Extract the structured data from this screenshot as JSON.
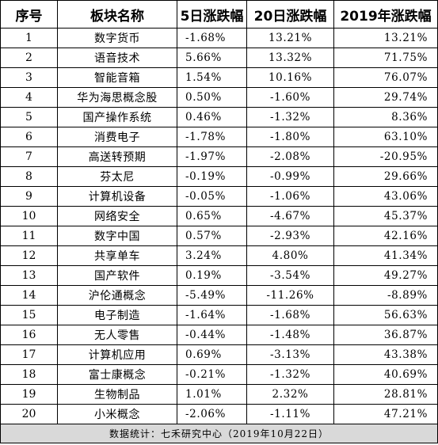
{
  "table": {
    "headers": [
      "序号",
      "板块名称",
      "5日涨跌幅",
      "20日涨跌幅",
      "2019年涨跌幅"
    ],
    "rows": [
      {
        "seq": "1",
        "name": "数字货币",
        "d5": "-1.68%",
        "d20": "13.21%",
        "y2019": "13.21%"
      },
      {
        "seq": "2",
        "name": "语音技术",
        "d5": "5.66%",
        "d20": "13.32%",
        "y2019": "71.75%"
      },
      {
        "seq": "3",
        "name": "智能音箱",
        "d5": "1.54%",
        "d20": "10.16%",
        "y2019": "76.07%"
      },
      {
        "seq": "4",
        "name": "华为海思概念股",
        "d5": "0.50%",
        "d20": "-1.60%",
        "y2019": "29.74%"
      },
      {
        "seq": "5",
        "name": "国产操作系统",
        "d5": "0.46%",
        "d20": "-1.32%",
        "y2019": "8.36%"
      },
      {
        "seq": "6",
        "name": "消费电子",
        "d5": "-1.78%",
        "d20": "-1.80%",
        "y2019": "63.10%"
      },
      {
        "seq": "7",
        "name": "高送转预期",
        "d5": "-1.97%",
        "d20": "-2.08%",
        "y2019": "-20.95%"
      },
      {
        "seq": "8",
        "name": "芬太尼",
        "d5": "-0.19%",
        "d20": "-0.99%",
        "y2019": "29.66%"
      },
      {
        "seq": "9",
        "name": "计算机设备",
        "d5": "-0.05%",
        "d20": "-1.06%",
        "y2019": "43.06%"
      },
      {
        "seq": "10",
        "name": "网络安全",
        "d5": "0.65%",
        "d20": "-4.67%",
        "y2019": "45.37%"
      },
      {
        "seq": "11",
        "name": "数字中国",
        "d5": "0.57%",
        "d20": "-2.93%",
        "y2019": "42.16%"
      },
      {
        "seq": "12",
        "name": "共享单车",
        "d5": "3.24%",
        "d20": "4.80%",
        "y2019": "41.34%"
      },
      {
        "seq": "13",
        "name": "国产软件",
        "d5": "0.19%",
        "d20": "-3.54%",
        "y2019": "49.27%"
      },
      {
        "seq": "14",
        "name": "沪伦通概念",
        "d5": "-5.49%",
        "d20": "-11.26%",
        "y2019": "-8.89%"
      },
      {
        "seq": "15",
        "name": "电子制造",
        "d5": "-1.64%",
        "d20": "-1.68%",
        "y2019": "56.63%"
      },
      {
        "seq": "16",
        "name": "无人零售",
        "d5": "-0.44%",
        "d20": "-1.48%",
        "y2019": "36.87%"
      },
      {
        "seq": "17",
        "name": "计算机应用",
        "d5": "0.69%",
        "d20": "-3.13%",
        "y2019": "43.38%"
      },
      {
        "seq": "18",
        "name": "富士康概念",
        "d5": "-0.21%",
        "d20": "-1.32%",
        "y2019": "40.69%"
      },
      {
        "seq": "19",
        "name": "生物制品",
        "d5": "1.01%",
        "d20": "2.32%",
        "y2019": "28.81%"
      },
      {
        "seq": "20",
        "name": "小米概念",
        "d5": "-2.06%",
        "d20": "-1.11%",
        "y2019": "47.21%"
      }
    ],
    "footer": "数据统计：七禾研究中心（2019年10月22日）"
  }
}
